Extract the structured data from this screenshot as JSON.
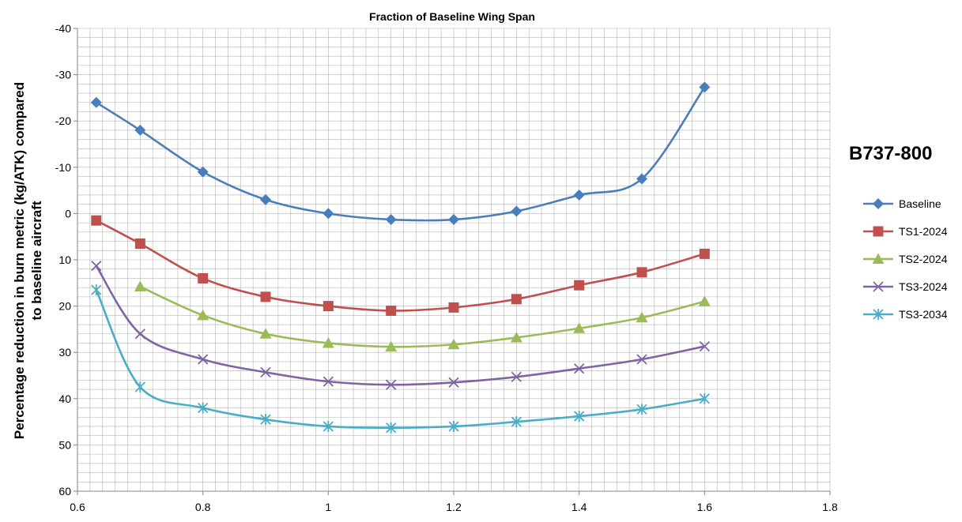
{
  "chart_data": {
    "type": "line",
    "title": "Fraction of Baseline Wing Span",
    "aircraft": "B737-800",
    "ylabel_lines": [
      "Percentage reduction in burn metric (kg/ATK) compared",
      "to baseline aircraft"
    ],
    "xlabel": "",
    "xlim": [
      0.6,
      1.8
    ],
    "ylim": [
      -40,
      60
    ],
    "y_inverted": true,
    "x_ticks": [
      "0.6",
      "0.8",
      "1",
      "1.2",
      "1.4",
      "1.6",
      "1.8"
    ],
    "y_ticks": [
      "-40",
      "-30",
      "-20",
      "-10",
      "0",
      "10",
      "20",
      "30",
      "40",
      "50",
      "60"
    ],
    "grid": true,
    "legend_position": "right",
    "series": [
      {
        "name": "Baseline",
        "color": "#4a7ebb",
        "marker": "diamond",
        "x": [
          0.63,
          0.7,
          0.8,
          0.9,
          1.0,
          1.1,
          1.2,
          1.3,
          1.4,
          1.5,
          1.6
        ],
        "y": [
          -24,
          -18,
          -9,
          -3,
          0,
          1.3,
          1.3,
          -0.5,
          -4,
          -7.5,
          -27.3
        ]
      },
      {
        "name": "TS1-2024",
        "color": "#c0504d",
        "marker": "square",
        "x": [
          0.63,
          0.7,
          0.8,
          0.9,
          1.0,
          1.1,
          1.2,
          1.3,
          1.4,
          1.5,
          1.6
        ],
        "y": [
          1.5,
          6.5,
          14,
          18,
          20,
          21,
          20.3,
          18.5,
          15.5,
          12.7,
          8.7
        ]
      },
      {
        "name": "TS2-2024",
        "color": "#9bbb59",
        "marker": "triangle",
        "x": [
          0.7,
          0.8,
          0.9,
          1.0,
          1.1,
          1.2,
          1.3,
          1.4,
          1.5,
          1.6
        ],
        "y": [
          15.8,
          22,
          26,
          28,
          28.8,
          28.3,
          26.8,
          24.8,
          22.5,
          19
        ]
      },
      {
        "name": "TS3-2024",
        "color": "#8064a2",
        "marker": "x",
        "x": [
          0.63,
          0.7,
          0.8,
          0.9,
          1.0,
          1.1,
          1.2,
          1.3,
          1.4,
          1.5,
          1.6
        ],
        "y": [
          11.3,
          26,
          31.5,
          34.3,
          36.3,
          37,
          36.5,
          35.3,
          33.5,
          31.5,
          28.7
        ]
      },
      {
        "name": "TS3-2034",
        "color": "#4bacc6",
        "marker": "star",
        "x": [
          0.63,
          0.7,
          0.8,
          0.9,
          1.0,
          1.1,
          1.2,
          1.3,
          1.4,
          1.5,
          1.6
        ],
        "y": [
          16.5,
          37.5,
          42,
          44.5,
          46,
          46.3,
          46,
          45,
          43.8,
          42.3,
          40
        ]
      }
    ]
  }
}
